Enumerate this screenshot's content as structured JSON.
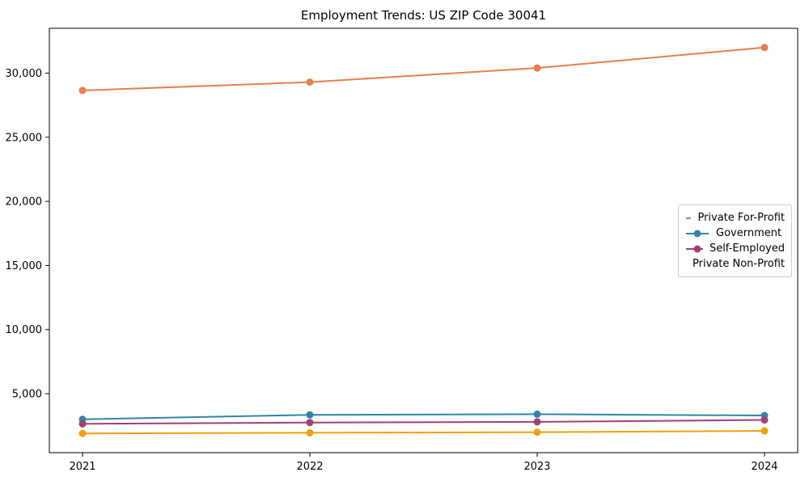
{
  "chart_data": {
    "type": "line",
    "title": "Employment Trends: US ZIP Code 30041",
    "xlabel": "",
    "ylabel": "",
    "x": [
      "2021",
      "2022",
      "2023",
      "2024"
    ],
    "series": [
      {
        "name": "Private For-Profit",
        "color": "#E87E4B",
        "values": [
          28650,
          29300,
          30400,
          32000
        ]
      },
      {
        "name": "Government",
        "color": "#3185A6",
        "values": [
          3000,
          3350,
          3400,
          3300
        ]
      },
      {
        "name": "Self-Employed",
        "color": "#A23E78",
        "values": [
          2650,
          2750,
          2800,
          2950
        ]
      },
      {
        "name": "Private Non-Profit",
        "color": "#F0A10A",
        "values": [
          1900,
          1950,
          2000,
          2100
        ]
      }
    ],
    "yticks": [
      5000,
      10000,
      15000,
      20000,
      25000,
      30000
    ],
    "ylim": [
      400,
      33500
    ],
    "grid": false,
    "legend_position": "center-right",
    "marker": "circle",
    "axis_color": "#000000",
    "legend_border_color": "#cccccc"
  }
}
